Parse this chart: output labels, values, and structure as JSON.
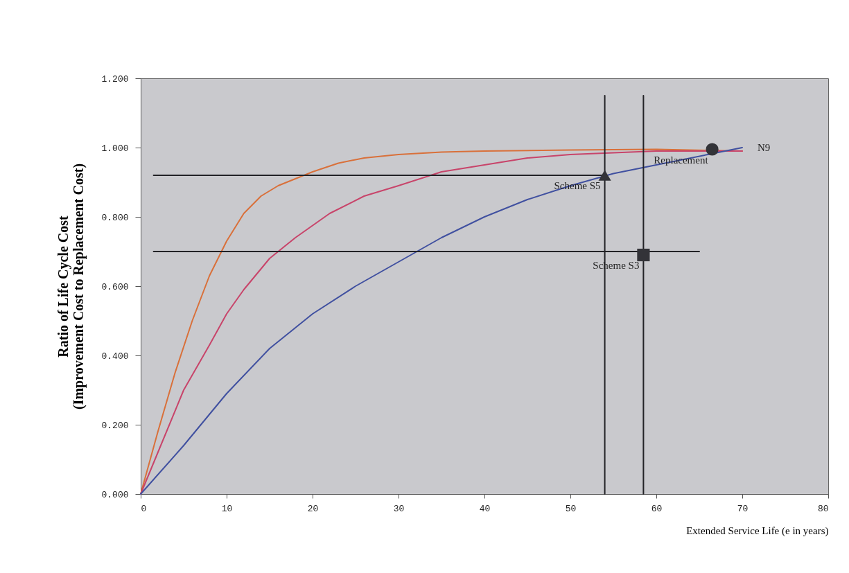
{
  "chart_data": {
    "type": "line",
    "xlabel": "Extended Service Life (e in years)",
    "ylabel": "Ratio of Life Cycle Cost\n(Improvement Cost to Replacement Cost)",
    "xlim": [
      0,
      80
    ],
    "xticks": [
      0,
      10,
      20,
      30,
      40,
      50,
      60,
      70,
      80
    ],
    "ylim": [
      0,
      1.2
    ],
    "yticks": [
      {
        "value": 0,
        "label": "0.000"
      },
      {
        "value": 0.2,
        "label": "0.200"
      },
      {
        "value": 0.4,
        "label": "0.400"
      },
      {
        "value": 0.6,
        "label": "0.600"
      },
      {
        "value": 0.8,
        "label": "0.800"
      },
      {
        "value": 1,
        "label": "1.000"
      },
      {
        "value": 1.2,
        "label": "1.200"
      }
    ],
    "grid": false,
    "series": [
      {
        "color": "#d9703a",
        "x": [
          0,
          2,
          4,
          6,
          8,
          10,
          12,
          14,
          16,
          18,
          20,
          23,
          26,
          30,
          35,
          40,
          50,
          60,
          70
        ],
        "values": [
          0,
          0.18,
          0.35,
          0.5,
          0.63,
          0.73,
          0.81,
          0.86,
          0.89,
          0.91,
          0.93,
          0.955,
          0.97,
          0.98,
          0.987,
          0.99,
          0.993,
          0.995,
          0.99
        ]
      },
      {
        "color": "#c8446a",
        "x": [
          0,
          2,
          5,
          8,
          10,
          12,
          15,
          18,
          22,
          26,
          30,
          35,
          40,
          45,
          50,
          55,
          60,
          70
        ],
        "values": [
          0,
          0.12,
          0.3,
          0.43,
          0.52,
          0.59,
          0.68,
          0.74,
          0.81,
          0.86,
          0.89,
          0.93,
          0.95,
          0.97,
          0.98,
          0.985,
          0.99,
          0.99
        ]
      },
      {
        "name": "N9",
        "color": "#4050a0",
        "x": [
          0,
          5,
          8,
          10,
          15,
          20,
          25,
          30,
          35,
          40,
          45,
          50,
          55,
          60,
          66,
          70
        ],
        "values": [
          0,
          0.14,
          0.23,
          0.29,
          0.42,
          0.52,
          0.6,
          0.67,
          0.74,
          0.8,
          0.85,
          0.89,
          0.925,
          0.95,
          0.98,
          1.0
        ]
      },
      {
        "color": "#222226",
        "x": [
          1.5,
          54
        ],
        "values": [
          0.92,
          0.92
        ]
      },
      {
        "color": "#222226",
        "x": [
          1.5,
          65
        ],
        "values": [
          0.7,
          0.7
        ]
      },
      {
        "color": "#222226",
        "x": [
          54,
          54
        ],
        "values": [
          0,
          1.15
        ]
      },
      {
        "color": "#222226",
        "x": [
          58.5,
          58.5
        ],
        "values": [
          0,
          1.15
        ]
      },
      {
        "name": "Scheme S5",
        "type": "scatter",
        "marker": "triangle",
        "color": "#333338",
        "x": [
          54
        ],
        "values": [
          0.92
        ]
      },
      {
        "name": "Scheme S3",
        "type": "scatter",
        "marker": "square",
        "color": "#333338",
        "x": [
          58.5
        ],
        "values": [
          0.69
        ]
      },
      {
        "name": "Replacement",
        "type": "scatter",
        "marker": "circle",
        "color": "#333338",
        "x": [
          66.5
        ],
        "values": [
          0.995
        ]
      }
    ]
  }
}
